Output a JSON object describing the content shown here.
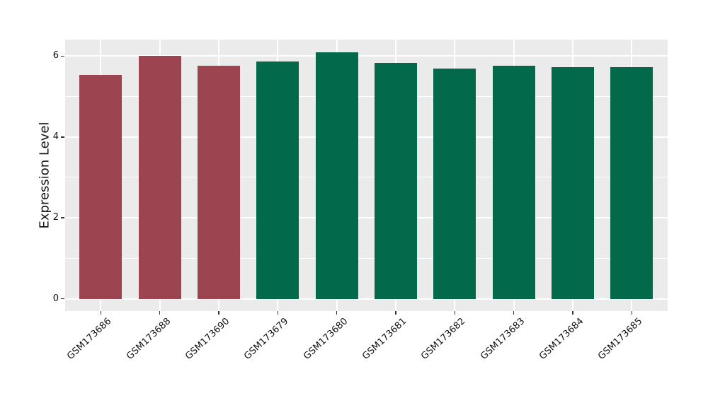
{
  "chart_data": {
    "type": "bar",
    "title": "",
    "xlabel": "",
    "ylabel": "Expression Level",
    "categories": [
      "GSM173686",
      "GSM173688",
      "GSM173690",
      "GSM173679",
      "GSM173680",
      "GSM173681",
      "GSM173682",
      "GSM173683",
      "GSM173684",
      "GSM173685"
    ],
    "values": [
      5.54,
      6.01,
      5.77,
      5.87,
      6.1,
      5.83,
      5.69,
      5.76,
      5.72,
      5.72
    ],
    "bar_color_keys": [
      "red",
      "red",
      "red",
      "green",
      "green",
      "green",
      "green",
      "green",
      "green",
      "green"
    ],
    "palette": {
      "red": "#9C4450",
      "green": "#02694A"
    },
    "ylim": [
      -0.305,
      6.41
    ],
    "yticks": [
      0,
      2,
      4,
      6
    ],
    "yticklabels": [
      "0",
      "2",
      "4",
      "6"
    ],
    "yticks_minor": [
      1,
      3,
      5
    ],
    "grid": "on",
    "grid_color": "#FFFFFF",
    "panel_bg": "#EBEBEB",
    "figure_bg": "#FFFFFF",
    "legend": "none",
    "x_tick_rotation": -43
  }
}
